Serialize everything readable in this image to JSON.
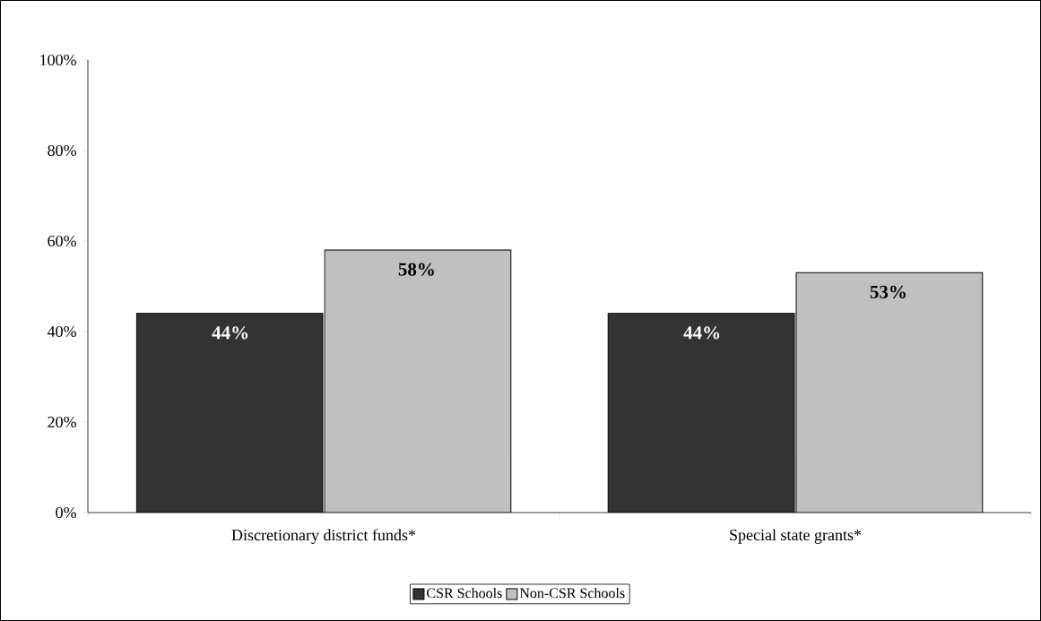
{
  "chart_data": {
    "type": "bar",
    "categories": [
      "Discretionary district funds*",
      "Special state grants*"
    ],
    "series": [
      {
        "name": "CSR Schools",
        "color": "#333333",
        "values": [
          44,
          44
        ],
        "value_labels": [
          "44%",
          "44%"
        ]
      },
      {
        "name": "Non-CSR Schools",
        "color": "#c0c0c0",
        "values": [
          58,
          53
        ],
        "value_labels": [
          "58%",
          "53%"
        ]
      }
    ],
    "ylim": [
      0,
      100
    ],
    "yticks": [
      {
        "value": 0,
        "label": "0%"
      },
      {
        "value": 20,
        "label": "20%"
      },
      {
        "value": 40,
        "label": "40%"
      },
      {
        "value": 60,
        "label": "60%"
      },
      {
        "value": 80,
        "label": "80%"
      },
      {
        "value": 100,
        "label": "100%"
      }
    ],
    "grid": false,
    "legend": "bottom"
  }
}
